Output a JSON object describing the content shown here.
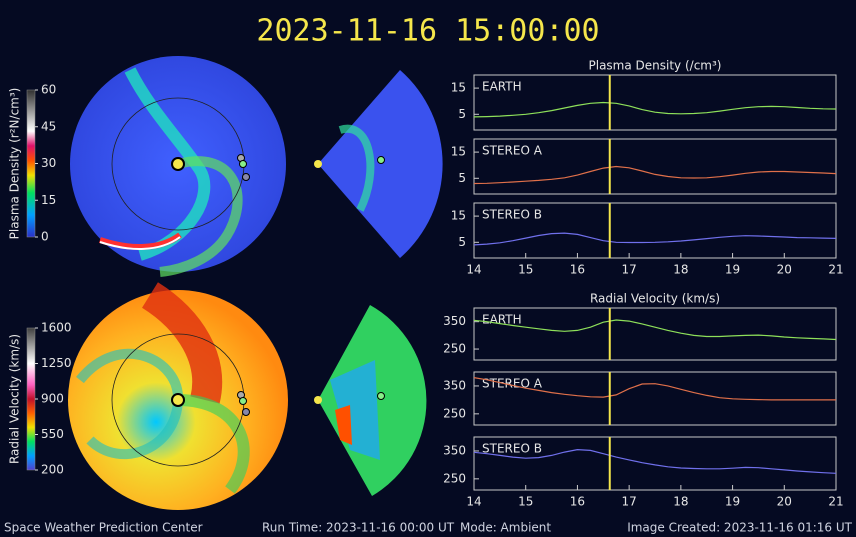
{
  "title": "2023-11-16 15:00:00",
  "footer": {
    "left": "Space Weather Prediction Center",
    "run_time": "Run Time: 2023-11-16 00:00 UT",
    "mode": "Mode: Ambient",
    "created": "Image Created: 2023-11-16 01:16 UT"
  },
  "time_marker": 16.625,
  "colorbars": [
    {
      "label": "Plasma Density (r²N/cm³)",
      "lim": [
        0,
        60
      ],
      "ticks": [
        0,
        15,
        30,
        45,
        60
      ]
    },
    {
      "label": "Radial Velocity (km/s)",
      "lim": [
        200,
        1600
      ],
      "ticks": [
        200,
        550,
        900,
        1250,
        1600
      ]
    }
  ],
  "chart_data": [
    {
      "type": "line",
      "title": "Plasma Density (/cm³)",
      "xlim": [
        14,
        21
      ],
      "ylim": [
        -1,
        20
      ],
      "yticks": [
        5,
        15
      ],
      "x": [
        14,
        14.25,
        14.5,
        14.75,
        15,
        15.25,
        15.5,
        15.75,
        16,
        16.25,
        16.5,
        16.75,
        17,
        17.25,
        17.5,
        17.75,
        18,
        18.25,
        18.5,
        18.75,
        19,
        19.25,
        19.5,
        19.75,
        20,
        20.25,
        20.5,
        20.75,
        21
      ],
      "series": [
        {
          "name": "EARTH",
          "color": "#8ee05a",
          "values": [
            4,
            4.1,
            4.3,
            4.6,
            5,
            5.6,
            6.4,
            7.4,
            8.4,
            9.2,
            9.5,
            9.2,
            8.2,
            6.8,
            5.8,
            5.3,
            5.2,
            5.3,
            5.6,
            6.2,
            6.9,
            7.5,
            7.9,
            8,
            7.9,
            7.6,
            7.3,
            7.1,
            7
          ]
        }
      ]
    },
    {
      "type": "line",
      "xlim": [
        14,
        21
      ],
      "ylim": [
        -1,
        20
      ],
      "yticks": [
        5,
        15
      ],
      "x": [
        14,
        14.25,
        14.5,
        14.75,
        15,
        15.25,
        15.5,
        15.75,
        16,
        16.25,
        16.5,
        16.75,
        17,
        17.25,
        17.5,
        17.75,
        18,
        18.25,
        18.5,
        18.75,
        19,
        19.25,
        19.5,
        19.75,
        20,
        20.25,
        20.5,
        20.75,
        21
      ],
      "series": [
        {
          "name": "STEREO A",
          "color": "#e0704a",
          "values": [
            3,
            3.1,
            3.3,
            3.6,
            3.9,
            4.2,
            4.6,
            5.2,
            6.2,
            7.6,
            8.9,
            9.5,
            9,
            7.8,
            6.5,
            5.7,
            5.2,
            5.1,
            5.2,
            5.6,
            6.2,
            6.9,
            7.4,
            7.6,
            7.6,
            7.4,
            7.2,
            7,
            6.8
          ]
        }
      ]
    },
    {
      "type": "line",
      "xlim": [
        14,
        21
      ],
      "ylim": [
        -1,
        20
      ],
      "yticks": [
        5,
        15
      ],
      "xticks": [
        14,
        15,
        16,
        17,
        18,
        19,
        20,
        21
      ],
      "x": [
        14,
        14.25,
        14.5,
        14.75,
        15,
        15.25,
        15.5,
        15.75,
        16,
        16.25,
        16.5,
        16.75,
        17,
        17.25,
        17.5,
        17.75,
        18,
        18.25,
        18.5,
        18.75,
        19,
        19.25,
        19.5,
        19.75,
        20,
        20.25,
        20.5,
        20.75,
        21
      ],
      "series": [
        {
          "name": "STEREO B",
          "color": "#7070ec",
          "values": [
            4,
            4.3,
            4.8,
            5.6,
            6.6,
            7.6,
            8.3,
            8.5,
            8,
            6.8,
            5.6,
            5,
            4.9,
            4.9,
            5,
            5.2,
            5.5,
            5.9,
            6.4,
            6.9,
            7.3,
            7.5,
            7.4,
            7.2,
            7,
            6.8,
            6.7,
            6.6,
            6.5
          ]
        }
      ]
    },
    {
      "type": "line",
      "title": "Radial Velocity (km/s)",
      "xlim": [
        14,
        21
      ],
      "ylim": [
        210,
        400
      ],
      "yticks": [
        250,
        350
      ],
      "x": [
        14,
        14.25,
        14.5,
        14.75,
        15,
        15.25,
        15.5,
        15.75,
        16,
        16.25,
        16.5,
        16.75,
        17,
        17.25,
        17.5,
        17.75,
        18,
        18.25,
        18.5,
        18.75,
        19,
        19.25,
        19.5,
        19.75,
        20,
        20.25,
        20.5,
        20.75,
        21
      ],
      "series": [
        {
          "name": "EARTH",
          "color": "#8ee05a",
          "values": [
            355,
            350,
            343,
            336,
            330,
            324,
            318,
            315,
            318,
            330,
            348,
            356,
            352,
            342,
            330,
            318,
            308,
            300,
            296,
            296,
            298,
            300,
            301,
            298,
            294,
            291,
            289,
            287,
            285
          ]
        }
      ]
    },
    {
      "type": "line",
      "xlim": [
        14,
        21
      ],
      "ylim": [
        210,
        400
      ],
      "yticks": [
        250,
        350
      ],
      "x": [
        14,
        14.25,
        14.5,
        14.75,
        15,
        15.25,
        15.5,
        15.75,
        16,
        16.25,
        16.5,
        16.75,
        17,
        17.25,
        17.5,
        17.75,
        18,
        18.25,
        18.5,
        18.75,
        19,
        19.25,
        19.5,
        19.75,
        20,
        20.25,
        20.5,
        20.75,
        21
      ],
      "series": [
        {
          "name": "STEREO A",
          "color": "#e0704a",
          "values": [
            380,
            372,
            362,
            352,
            342,
            334,
            326,
            320,
            315,
            311,
            310,
            318,
            340,
            357,
            358,
            350,
            338,
            326,
            316,
            308,
            304,
            302,
            301,
            300,
            300,
            300,
            300,
            300,
            300
          ]
        }
      ]
    },
    {
      "type": "line",
      "xlim": [
        14,
        21
      ],
      "ylim": [
        210,
        400
      ],
      "yticks": [
        250,
        350
      ],
      "xticks": [
        14,
        15,
        16,
        17,
        18,
        19,
        20,
        21
      ],
      "x": [
        14,
        14.25,
        14.5,
        14.75,
        15,
        15.25,
        15.5,
        15.75,
        16,
        16.25,
        16.5,
        16.75,
        17,
        17.25,
        17.5,
        17.75,
        18,
        18.25,
        18.5,
        18.75,
        19,
        19.25,
        19.5,
        19.75,
        20,
        20.25,
        20.5,
        20.75,
        21
      ],
      "series": [
        {
          "name": "STEREO B",
          "color": "#7070ec",
          "values": [
            345,
            340,
            334,
            328,
            324,
            326,
            334,
            346,
            355,
            352,
            340,
            328,
            318,
            308,
            300,
            293,
            289,
            287,
            286,
            286,
            288,
            291,
            290,
            286,
            282,
            278,
            275,
            272,
            270
          ]
        }
      ]
    }
  ]
}
